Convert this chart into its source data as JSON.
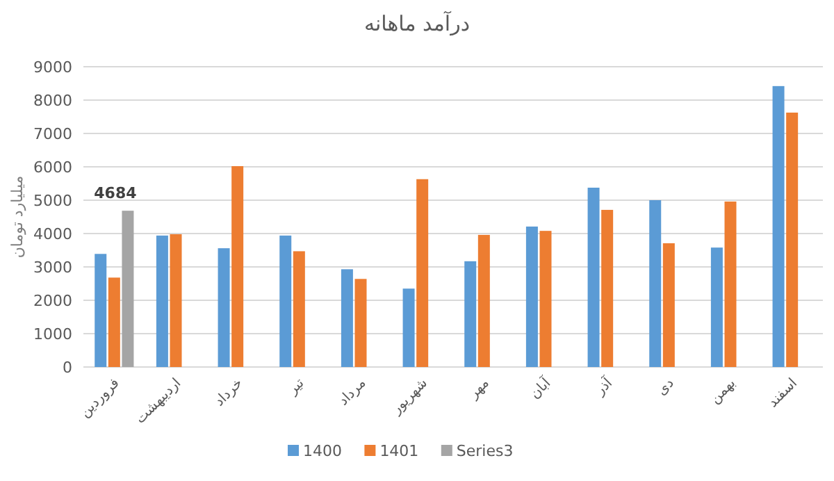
{
  "chart_data": {
    "type": "bar",
    "title": "درآمد ماهانه",
    "ylabel": "میلیارد تومان",
    "categories": [
      "فروردین",
      "اردیبهشت",
      "خرداد",
      "تیر",
      "مرداد",
      "شهریور",
      "مهر",
      "آبان",
      "آذر",
      "دی",
      "بهمن",
      "اسفند"
    ],
    "series": [
      {
        "name": "1400",
        "color": "#5b9bd5",
        "values": [
          3390,
          3940,
          3560,
          3940,
          2930,
          2350,
          3170,
          4210,
          5375,
          5000,
          3580,
          8420
        ]
      },
      {
        "name": "1401",
        "color": "#ed7d31",
        "values": [
          2680,
          3980,
          6020,
          3470,
          2640,
          5630,
          3960,
          4080,
          4710,
          3710,
          4960,
          7625
        ]
      },
      {
        "name": "Series3",
        "color": "#a5a5a5",
        "values": [
          4684,
          null,
          null,
          null,
          null,
          null,
          null,
          null,
          null,
          null,
          null,
          null
        ],
        "value_labels": [
          "4684",
          null,
          null,
          null,
          null,
          null,
          null,
          null,
          null,
          null,
          null,
          null
        ]
      }
    ],
    "ylim": [
      0,
      9000
    ],
    "yticks": [
      0,
      1000,
      2000,
      3000,
      4000,
      5000,
      6000,
      7000,
      8000,
      9000
    ],
    "grid": "y",
    "legend": "bottom"
  }
}
